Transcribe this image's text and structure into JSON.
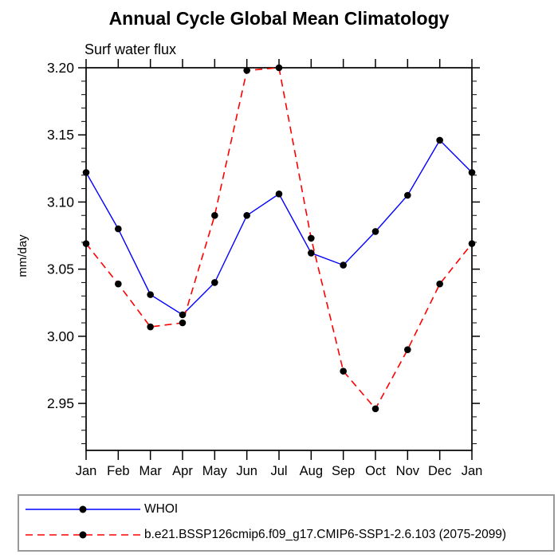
{
  "title": "Annual Cycle Global Mean Climatology",
  "subtitle": "Surf water flux",
  "chart_data": {
    "type": "line",
    "title": "Annual Cycle Global Mean Climatology",
    "subtitle": "Surf water flux",
    "xlabel": "",
    "ylabel": "mm/day",
    "categories": [
      "Jan",
      "Feb",
      "Mar",
      "Apr",
      "May",
      "Jun",
      "Jul",
      "Aug",
      "Sep",
      "Oct",
      "Nov",
      "Dec",
      "Jan"
    ],
    "series": [
      {
        "name": "WHOI",
        "color": "#0000ff",
        "line_style": "solid",
        "marker": "filled-circle",
        "marker_color": "#000000",
        "values": [
          3.122,
          3.08,
          3.031,
          3.016,
          3.04,
          3.09,
          3.106,
          3.062,
          3.053,
          3.078,
          3.105,
          3.146,
          3.122
        ]
      },
      {
        "name": "b.e21.BSSP126cmip6.f09_g17.CMIP6-SSP1-2.6.103 (2075-2099)",
        "color": "#ff0000",
        "line_style": "dashed",
        "marker": "filled-circle",
        "marker_color": "#000000",
        "values": [
          3.069,
          3.039,
          3.007,
          3.01,
          3.09,
          3.198,
          3.2,
          3.073,
          2.974,
          2.946,
          2.99,
          3.039,
          3.069
        ]
      }
    ],
    "ylim": [
      2.915,
      3.2
    ],
    "yticks": [
      3.2,
      3.15,
      3.1,
      3.05,
      3.0,
      2.95
    ],
    "ytick_labels": [
      "3.20",
      "3.15",
      "3.10",
      "3.05",
      "3.00",
      "2.95"
    ],
    "y_minor_step": 0.01,
    "y_minor_min": 2.92,
    "grid": false,
    "legend_position": "bottom",
    "axis_color": "#000000"
  }
}
